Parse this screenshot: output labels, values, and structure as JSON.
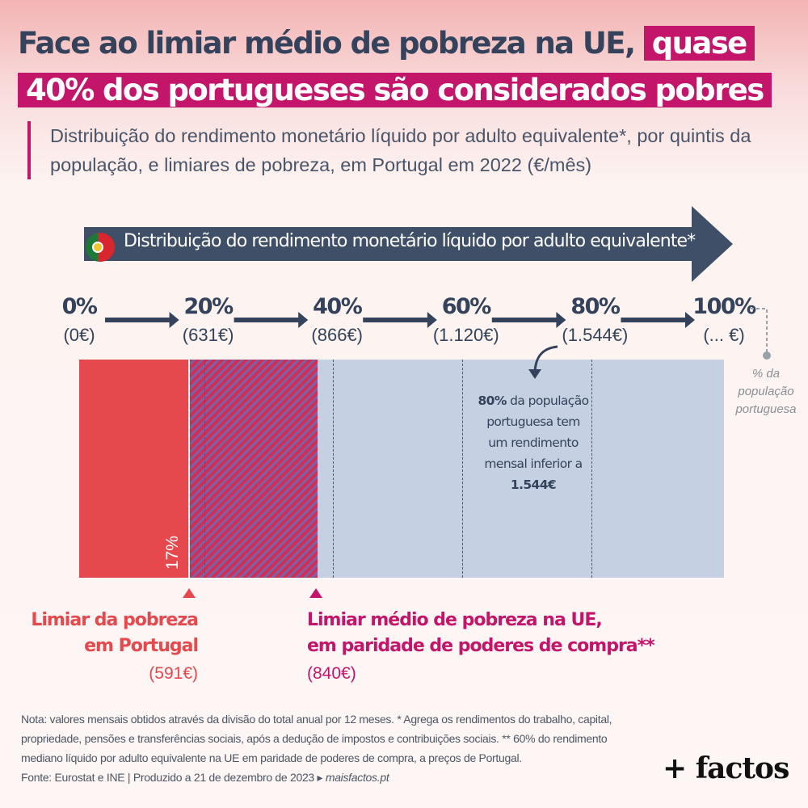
{
  "title": {
    "line1_plain": "Face ao limiar médio de pobreza na UE,",
    "line1_highlight": "quase",
    "line2_highlight": "40% dos portugueses são considerados pobres"
  },
  "subtitle": "Distribuição do rendimento monetário líquido por adulto equivalente*, por quintis da população, e limiares de pobreza, em Portugal em 2022 (€/mês)",
  "header_arrow_label": "Distribuição do rendimento monetário líquido por adulto equivalente*",
  "colors": {
    "dark_blue": "#34435b",
    "magenta": "#c3166a",
    "pt_threshold_red": "#e5484d",
    "eu_threshold_magenta": "#c3166a",
    "population_band": "#c5d0e2"
  },
  "chart_data": {
    "type": "bar",
    "unit": "€/mês",
    "quantiles": [
      {
        "percent": "0%",
        "value_label": "(0€)",
        "value": 0
      },
      {
        "percent": "20%",
        "value_label": "(631€)",
        "value": 631
      },
      {
        "percent": "40%",
        "value_label": "(866€)",
        "value": 866
      },
      {
        "percent": "60%",
        "value_label": "(1.120€)",
        "value": 1120
      },
      {
        "percent": "80%",
        "value_label": "(1.544€)",
        "value": 1544
      },
      {
        "percent": "100%",
        "value_label": "(... €)",
        "value": null
      }
    ],
    "thresholds": [
      {
        "name_line1": "Limiar da pobreza",
        "name_line2": "em Portugal",
        "value_label": "(591€)",
        "value": 591,
        "population_share_pct": 17,
        "share_label": "17%"
      },
      {
        "name_line1": "Limiar médio de pobreza na UE,",
        "name_line2": "em paridade de poderes de compra**",
        "value_label": "(840€)",
        "value": 840,
        "population_share_pct": 37
      }
    ],
    "annotation_80": {
      "bold_start": "80%",
      "text_mid": " da população portuguesa tem um rendimento mensal inferior a ",
      "bold_end": "1.544€"
    },
    "side_note": "% da população portuguesa"
  },
  "footnote": {
    "text": "Nota: valores mensais obtidos através da divisão do total anual por 12 meses. * Agrega os rendimentos do trabalho, capital, propriedade, pensões e transferências sociais, após a dedução de impostos e contribuições sociais. ** 60% do rendimento mediano líquido por adulto equivalente na UE em paridade de poderes de compra, a preços de Portugal.",
    "source": "Fonte: Eurostat e INE | Produzido a 21 de dezembro de 2023 ▸ ",
    "site": "maisfactos.pt"
  },
  "logo": "+ factos"
}
